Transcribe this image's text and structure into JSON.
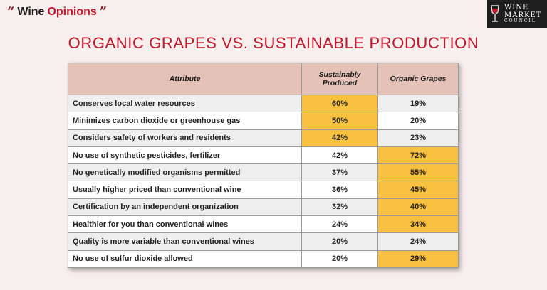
{
  "brand_left": {
    "quote_open": "“",
    "name_plain": "Wine ",
    "name_accent": "Opinions",
    "quote_close": "”"
  },
  "brand_right": {
    "line1": "WINE",
    "line2": "MARKET",
    "line3": "COUNCIL"
  },
  "colors": {
    "title": "#c0172b",
    "highlight": "#f8c240",
    "header_bg": "#e5c2b7"
  },
  "chart_data": {
    "type": "table",
    "title": "ORGANIC GRAPES VS. SUSTAINABLE PRODUCTION",
    "columns": [
      "Attribute",
      "Sustainably Produced",
      "Organic Grapes"
    ],
    "rows": [
      {
        "attribute": "Conserves local water resources",
        "sustainable": "60%",
        "organic": "19%",
        "highlight": "sustainable"
      },
      {
        "attribute": "Minimizes carbon dioxide or greenhouse gas",
        "sustainable": "50%",
        "organic": "20%",
        "highlight": "sustainable"
      },
      {
        "attribute": "Considers safety of workers and residents",
        "sustainable": "42%",
        "organic": "23%",
        "highlight": "sustainable"
      },
      {
        "attribute": "No use of synthetic pesticides, fertilizer",
        "sustainable": "42%",
        "organic": "72%",
        "highlight": "organic"
      },
      {
        "attribute": "No genetically modified organisms permitted",
        "sustainable": "37%",
        "organic": "55%",
        "highlight": "organic"
      },
      {
        "attribute": "Usually higher priced than conventional wine",
        "sustainable": "36%",
        "organic": "45%",
        "highlight": "organic"
      },
      {
        "attribute": "Certification by an independent organization",
        "sustainable": "32%",
        "organic": "40%",
        "highlight": "organic"
      },
      {
        "attribute": "Healthier for you than conventional wines",
        "sustainable": "24%",
        "organic": "34%",
        "highlight": "organic"
      },
      {
        "attribute": "Quality is more variable than conventional wines",
        "sustainable": "20%",
        "organic": "24%",
        "highlight": "none"
      },
      {
        "attribute": "No use of sulfur dioxide allowed",
        "sustainable": "20%",
        "organic": "29%",
        "highlight": "organic"
      }
    ]
  }
}
